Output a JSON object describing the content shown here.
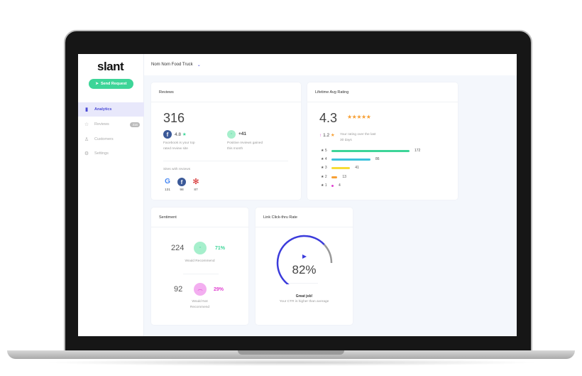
{
  "sidebar": {
    "logo": "slant",
    "send_request": "Send Request",
    "items": [
      {
        "label": "Analytics",
        "icon": "bar-chart-icon"
      },
      {
        "label": "Reviews",
        "icon": "star-icon",
        "badge": "316"
      },
      {
        "label": "Customers",
        "icon": "user-icon"
      },
      {
        "label": "Settings",
        "icon": "gear-icon"
      }
    ]
  },
  "header": {
    "business": "Nom Nom Food Truck"
  },
  "reviews": {
    "title": "Reviews",
    "total": "316",
    "fb_rating": "4.8",
    "fb_caption_1": "Facebook is your top",
    "fb_caption_2": "rated review site",
    "gain": "+41",
    "gain_caption_1": "Positive reviews gained",
    "gain_caption_2": "this month",
    "sites_label": "Sites with reviews",
    "sites": [
      {
        "name": "google",
        "count": "131"
      },
      {
        "name": "facebook",
        "count": "98"
      },
      {
        "name": "yelp",
        "count": "87"
      }
    ]
  },
  "rating": {
    "title": "Lifetime Avg Rating",
    "avg": "4.3",
    "stars": 5,
    "change": "1.2",
    "change_caption_1": "Your rating over the last",
    "change_caption_2": "30 days",
    "bars": [
      {
        "label": "5",
        "count": "172",
        "value": 172,
        "color": "#3dd598"
      },
      {
        "label": "4",
        "count": "86",
        "value": 86,
        "color": "#3cc2dd"
      },
      {
        "label": "3",
        "count": "41",
        "value": 41,
        "color": "#f7dc36"
      },
      {
        "label": "2",
        "count": "13",
        "value": 13,
        "color": "#f7a035"
      },
      {
        "label": "1",
        "count": "4",
        "value": 4,
        "color": "#e040d0"
      }
    ]
  },
  "sentiment": {
    "title": "Sentiment",
    "pos_count": "224",
    "pos_pct": "71%",
    "pos_label": "Would Recommend",
    "neg_count": "92",
    "neg_pct": "29%",
    "neg_label_1": "Would Not",
    "neg_label_2": "Recommend",
    "pos_color": "#3dd598",
    "neg_color": "#e040d0"
  },
  "ctr": {
    "title": "Link Click-thru Rate",
    "value": "82%",
    "percent": 82,
    "headline": "Great job!",
    "caption": "Your CTR is higher than average",
    "color": "#3b3bdb"
  }
}
